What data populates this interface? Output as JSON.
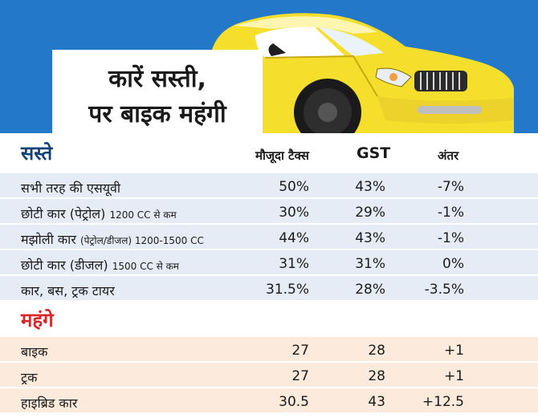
{
  "header": {
    "title_line1": "कारें सस्ती,",
    "title_line2": "पर बाइक महंगी"
  },
  "colors": {
    "banner": "#2378c9",
    "car_body": "#f6df2c",
    "cheap_row": "#e6ecf6",
    "costly_row": "#fcebdc",
    "cheap_heading": "#14407a",
    "costly_heading": "#d8262a"
  },
  "table": {
    "columns": {
      "current_tax": "मौजूदा टैक्स",
      "gst": "GST",
      "difference": "अंतर"
    },
    "cheaper": {
      "heading": "सस्ते",
      "rows": [
        {
          "item": "सभी तरह की एसयूवी",
          "note": "",
          "current_tax": "50%",
          "gst": "43%",
          "difference": "-7%"
        },
        {
          "item": "छोटी कार (पेट्रोल)",
          "note": "1200 CC से कम",
          "current_tax": "30%",
          "gst": "29%",
          "difference": "-1%"
        },
        {
          "item": "मझोली कार",
          "note": "(पेट्रोल/डीजल) 1200-1500 CC",
          "current_tax": "44%",
          "gst": "43%",
          "difference": "-1%"
        },
        {
          "item": "छोटी कार (डीजल)",
          "note": "1500 CC से कम",
          "current_tax": "31%",
          "gst": "31%",
          "difference": "0%"
        },
        {
          "item": "कार, बस, ट्रक टायर",
          "note": "",
          "current_tax": "31.5%",
          "gst": "28%",
          "difference": "-3.5%"
        }
      ]
    },
    "costlier": {
      "heading": "महंगे",
      "rows": [
        {
          "item": "बाइक",
          "note": "",
          "current_tax": "27",
          "gst": "28",
          "difference": "+1"
        },
        {
          "item": "ट्रक",
          "note": "",
          "current_tax": "27",
          "gst": "28",
          "difference": "+1"
        },
        {
          "item": "हाइब्रिड कार",
          "note": "",
          "current_tax": "30.5",
          "gst": "43",
          "difference": "+12.5"
        }
      ]
    }
  }
}
